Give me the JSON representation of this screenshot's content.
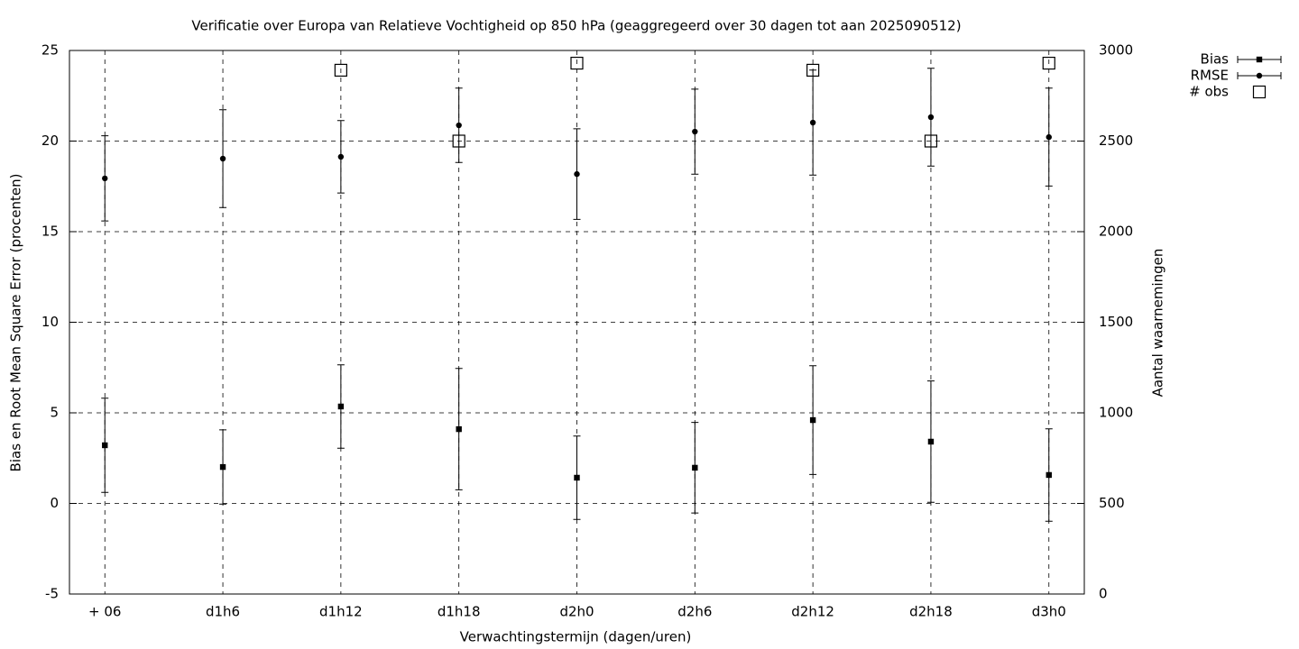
{
  "chart_data": {
    "type": "errorbar",
    "title": "Verificatie over Europa van Relatieve Vochtigheid op 850 hPa (geaggregeerd over 30 dagen tot aan 2025090512)",
    "x_label": "Verwachtingstermijn (dagen/uren)",
    "y_label": "Bias en Root Mean Square Error (procenten)",
    "y2_label": "Aantal waarnemingen",
    "categories": [
      "+ 06",
      "d1h6",
      "d1h12",
      "d1h18",
      "d2h0",
      "d2h6",
      "d2h12",
      "d2h18",
      "d3h0"
    ],
    "series": [
      {
        "name": "Bias",
        "color": "#000000",
        "marker": "filled-square",
        "values": [
          3.21,
          2.01,
          5.35,
          4.1,
          1.42,
          1.97,
          4.6,
          3.41,
          1.57
        ],
        "errors": [
          2.6,
          2.05,
          2.3,
          3.35,
          2.3,
          2.5,
          3.0,
          3.35,
          2.55
        ]
      },
      {
        "name": "RMSE",
        "color": "#000000",
        "marker": "filled-circle",
        "values": [
          17.94,
          19.03,
          19.13,
          20.87,
          18.18,
          20.52,
          21.02,
          21.32,
          20.22
        ],
        "errors": [
          2.35,
          2.7,
          2.0,
          2.05,
          2.5,
          2.35,
          2.9,
          2.7,
          2.7
        ]
      },
      {
        "name": "# obs",
        "color": "#000000",
        "marker": "open-square",
        "axis": "y2",
        "values": [
          null,
          null,
          2891,
          2500,
          2930,
          null,
          2891,
          2500,
          2930
        ]
      }
    ],
    "ylim": [
      -5,
      25
    ],
    "yticks": [
      -5,
      0,
      5,
      10,
      15,
      20,
      25
    ],
    "y2lim": [
      0,
      3000
    ],
    "y2ticks": [
      0,
      500,
      1000,
      1500,
      2000,
      2500,
      3000
    ],
    "grid": true,
    "legend": "outside top right"
  }
}
